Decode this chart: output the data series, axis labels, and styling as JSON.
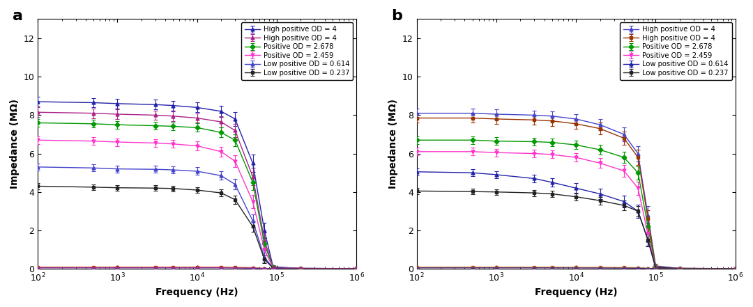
{
  "panel_a": {
    "label": "a",
    "series": [
      {
        "label": "High positive OD = 4",
        "color": "#2222aa",
        "marker": "^",
        "freqs": [
          100,
          500,
          1000,
          3000,
          5000,
          10000,
          20000,
          30000,
          50000,
          70000,
          90000,
          200000,
          1000000
        ],
        "vals": [
          8.7,
          8.65,
          8.6,
          8.55,
          8.5,
          8.4,
          8.2,
          7.8,
          5.5,
          2.0,
          0.1,
          0.02,
          0.01
        ],
        "errs": [
          0.25,
          0.25,
          0.25,
          0.25,
          0.25,
          0.25,
          0.3,
          0.35,
          0.45,
          0.4,
          0.1,
          0.02,
          0.01
        ]
      },
      {
        "label": "High positive OD = 4",
        "color": "#aa2288",
        "marker": "^",
        "freqs": [
          100,
          500,
          1000,
          3000,
          5000,
          10000,
          20000,
          30000,
          50000,
          70000,
          90000,
          200000,
          1000000
        ],
        "vals": [
          8.15,
          8.1,
          8.05,
          8.0,
          7.95,
          7.85,
          7.65,
          7.2,
          4.8,
          1.5,
          0.08,
          0.02,
          0.01
        ],
        "errs": [
          0.25,
          0.25,
          0.25,
          0.25,
          0.25,
          0.25,
          0.3,
          0.35,
          0.45,
          0.4,
          0.1,
          0.02,
          0.01
        ]
      },
      {
        "label": "Positive OD = 2.678",
        "color": "#009900",
        "marker": "D",
        "freqs": [
          100,
          500,
          1000,
          3000,
          5000,
          10000,
          20000,
          30000,
          50000,
          70000,
          90000,
          200000,
          1000000
        ],
        "vals": [
          7.6,
          7.55,
          7.5,
          7.45,
          7.42,
          7.35,
          7.1,
          6.7,
          4.5,
          1.3,
          0.06,
          0.02,
          0.01
        ],
        "errs": [
          0.2,
          0.2,
          0.2,
          0.2,
          0.2,
          0.22,
          0.25,
          0.3,
          0.4,
          0.35,
          0.08,
          0.02,
          0.01
        ]
      },
      {
        "label": "Positive OD = 2.459",
        "color": "#ff33cc",
        "marker": "v",
        "freqs": [
          100,
          500,
          1000,
          3000,
          5000,
          10000,
          20000,
          30000,
          50000,
          70000,
          90000,
          200000,
          1000000
        ],
        "vals": [
          6.7,
          6.65,
          6.6,
          6.55,
          6.5,
          6.4,
          6.1,
          5.6,
          3.5,
          1.0,
          0.05,
          0.02,
          0.01
        ],
        "errs": [
          0.2,
          0.2,
          0.2,
          0.2,
          0.2,
          0.22,
          0.25,
          0.3,
          0.35,
          0.3,
          0.07,
          0.02,
          0.01
        ]
      },
      {
        "label": "Low positive OD = 0.614",
        "color": "#4444cc",
        "marker": "^",
        "freqs": [
          100,
          500,
          1000,
          3000,
          5000,
          10000,
          20000,
          30000,
          50000,
          70000,
          90000,
          200000,
          1000000
        ],
        "vals": [
          5.3,
          5.25,
          5.2,
          5.18,
          5.15,
          5.08,
          4.85,
          4.4,
          2.5,
          0.6,
          0.04,
          0.02,
          0.005
        ],
        "errs": [
          0.18,
          0.18,
          0.18,
          0.18,
          0.18,
          0.2,
          0.22,
          0.28,
          0.32,
          0.25,
          0.06,
          0.02,
          0.005
        ]
      },
      {
        "label": "Low positive OD = 0.237",
        "color": "#222222",
        "marker": "s",
        "freqs": [
          100,
          500,
          1000,
          3000,
          5000,
          10000,
          20000,
          30000,
          50000,
          70000,
          90000,
          200000,
          1000000
        ],
        "vals": [
          4.3,
          4.25,
          4.22,
          4.2,
          4.18,
          4.1,
          3.95,
          3.6,
          2.2,
          0.5,
          0.03,
          0.015,
          0.005
        ],
        "errs": [
          0.15,
          0.15,
          0.15,
          0.15,
          0.15,
          0.16,
          0.18,
          0.22,
          0.28,
          0.2,
          0.05,
          0.015,
          0.005
        ]
      },
      {
        "label": "_nolegend_a1",
        "color": "#cc3300",
        "marker": "s",
        "freqs": [
          100,
          500,
          1000,
          3000,
          5000,
          10000,
          20000,
          30000,
          50000,
          70000,
          90000,
          200000,
          1000000
        ],
        "vals": [
          0.08,
          0.08,
          0.08,
          0.08,
          0.08,
          0.08,
          0.08,
          0.07,
          0.05,
          0.02,
          0.01,
          0.005,
          0.002
        ],
        "errs": [
          0.01,
          0.01,
          0.01,
          0.01,
          0.01,
          0.01,
          0.01,
          0.01,
          0.01,
          0.01,
          0.005,
          0.002,
          0.001
        ]
      },
      {
        "label": "_nolegend_a2",
        "color": "#8833aa",
        "marker": "^",
        "freqs": [
          100,
          500,
          1000,
          3000,
          5000,
          10000,
          20000,
          30000,
          50000,
          70000,
          90000,
          200000,
          1000000
        ],
        "vals": [
          0.05,
          0.05,
          0.05,
          0.05,
          0.05,
          0.05,
          0.05,
          0.04,
          0.03,
          0.015,
          0.008,
          0.003,
          0.001
        ],
        "errs": [
          0.008,
          0.008,
          0.008,
          0.008,
          0.008,
          0.008,
          0.008,
          0.008,
          0.008,
          0.007,
          0.004,
          0.002,
          0.001
        ]
      }
    ]
  },
  "panel_b": {
    "label": "b",
    "series": [
      {
        "label": "High positive OD = 4",
        "color": "#4444cc",
        "marker": "^",
        "freqs": [
          100,
          500,
          1000,
          3000,
          5000,
          10000,
          20000,
          40000,
          60000,
          80000,
          100000,
          200000,
          1000000
        ],
        "vals": [
          8.1,
          8.1,
          8.05,
          8.0,
          7.95,
          7.8,
          7.5,
          7.0,
          6.0,
          2.8,
          0.15,
          0.02,
          0.01
        ],
        "errs": [
          0.25,
          0.25,
          0.25,
          0.25,
          0.25,
          0.25,
          0.3,
          0.35,
          0.4,
          0.45,
          0.12,
          0.02,
          0.01
        ]
      },
      {
        "label": "High positive OD = 4",
        "color": "#993300",
        "marker": "s",
        "freqs": [
          100,
          500,
          1000,
          3000,
          5000,
          10000,
          20000,
          40000,
          60000,
          80000,
          100000,
          200000,
          1000000
        ],
        "vals": [
          7.85,
          7.85,
          7.8,
          7.75,
          7.7,
          7.55,
          7.3,
          6.8,
          5.8,
          2.6,
          0.12,
          0.02,
          0.01
        ],
        "errs": [
          0.25,
          0.25,
          0.25,
          0.25,
          0.25,
          0.25,
          0.3,
          0.35,
          0.4,
          0.45,
          0.12,
          0.02,
          0.01
        ]
      },
      {
        "label": "Positive OD = 2.678",
        "color": "#009900",
        "marker": "D",
        "freqs": [
          100,
          500,
          1000,
          3000,
          5000,
          10000,
          20000,
          40000,
          60000,
          80000,
          100000,
          200000,
          1000000
        ],
        "vals": [
          6.7,
          6.7,
          6.65,
          6.62,
          6.58,
          6.45,
          6.2,
          5.8,
          5.0,
          2.2,
          0.1,
          0.02,
          0.01
        ],
        "errs": [
          0.2,
          0.2,
          0.2,
          0.2,
          0.2,
          0.22,
          0.25,
          0.3,
          0.35,
          0.4,
          0.1,
          0.02,
          0.01
        ]
      },
      {
        "label": "Positive OD = 2.459",
        "color": "#ff33cc",
        "marker": "v",
        "freqs": [
          100,
          500,
          1000,
          3000,
          5000,
          10000,
          20000,
          40000,
          60000,
          80000,
          100000,
          200000,
          1000000
        ],
        "vals": [
          6.1,
          6.1,
          6.05,
          6.0,
          5.95,
          5.8,
          5.5,
          5.1,
          4.2,
          1.8,
          0.08,
          0.02,
          0.01
        ],
        "errs": [
          0.2,
          0.2,
          0.2,
          0.2,
          0.2,
          0.22,
          0.25,
          0.3,
          0.35,
          0.38,
          0.08,
          0.02,
          0.01
        ]
      },
      {
        "label": "Low positive OD = 0.614",
        "color": "#2222aa",
        "marker": "^",
        "freqs": [
          100,
          500,
          1000,
          3000,
          5000,
          10000,
          20000,
          40000,
          60000,
          80000,
          100000,
          200000,
          1000000
        ],
        "vals": [
          5.05,
          5.0,
          4.9,
          4.7,
          4.5,
          4.2,
          3.9,
          3.5,
          3.0,
          1.5,
          0.06,
          0.02,
          0.005
        ],
        "errs": [
          0.18,
          0.18,
          0.18,
          0.2,
          0.22,
          0.25,
          0.28,
          0.32,
          0.35,
          0.35,
          0.08,
          0.02,
          0.005
        ]
      },
      {
        "label": "Low positive OD = 0.237",
        "color": "#222222",
        "marker": "s",
        "freqs": [
          100,
          500,
          1000,
          3000,
          5000,
          10000,
          20000,
          40000,
          60000,
          80000,
          100000,
          200000,
          1000000
        ],
        "vals": [
          4.05,
          4.02,
          4.0,
          3.95,
          3.9,
          3.75,
          3.55,
          3.3,
          3.0,
          1.5,
          0.05,
          0.015,
          0.005
        ],
        "errs": [
          0.15,
          0.15,
          0.15,
          0.16,
          0.16,
          0.18,
          0.2,
          0.25,
          0.28,
          0.3,
          0.06,
          0.015,
          0.005
        ]
      },
      {
        "label": "_nolegend_b1",
        "color": "#cc6600",
        "marker": "s",
        "freqs": [
          100,
          500,
          1000,
          3000,
          5000,
          10000,
          20000,
          40000,
          60000,
          80000,
          100000,
          200000,
          1000000
        ],
        "vals": [
          0.08,
          0.08,
          0.08,
          0.08,
          0.08,
          0.07,
          0.07,
          0.06,
          0.05,
          0.02,
          0.01,
          0.005,
          0.002
        ],
        "errs": [
          0.01,
          0.01,
          0.01,
          0.01,
          0.01,
          0.01,
          0.01,
          0.01,
          0.01,
          0.01,
          0.005,
          0.002,
          0.001
        ]
      },
      {
        "label": "_nolegend_b2",
        "color": "#553388",
        "marker": "^",
        "freqs": [
          100,
          500,
          1000,
          3000,
          5000,
          10000,
          20000,
          40000,
          60000,
          80000,
          100000,
          200000,
          1000000
        ],
        "vals": [
          0.05,
          0.05,
          0.05,
          0.05,
          0.05,
          0.045,
          0.04,
          0.035,
          0.03,
          0.015,
          0.008,
          0.003,
          0.001
        ],
        "errs": [
          0.008,
          0.008,
          0.008,
          0.008,
          0.008,
          0.008,
          0.008,
          0.007,
          0.007,
          0.006,
          0.004,
          0.002,
          0.001
        ]
      }
    ]
  },
  "xlabel": "Frequency (Hz)",
  "ylabel": "Impedance (MΩ)",
  "xlim": [
    100,
    1000000
  ],
  "ylim": [
    0,
    13
  ],
  "yticks": [
    0,
    2,
    4,
    6,
    8,
    10,
    12
  ]
}
